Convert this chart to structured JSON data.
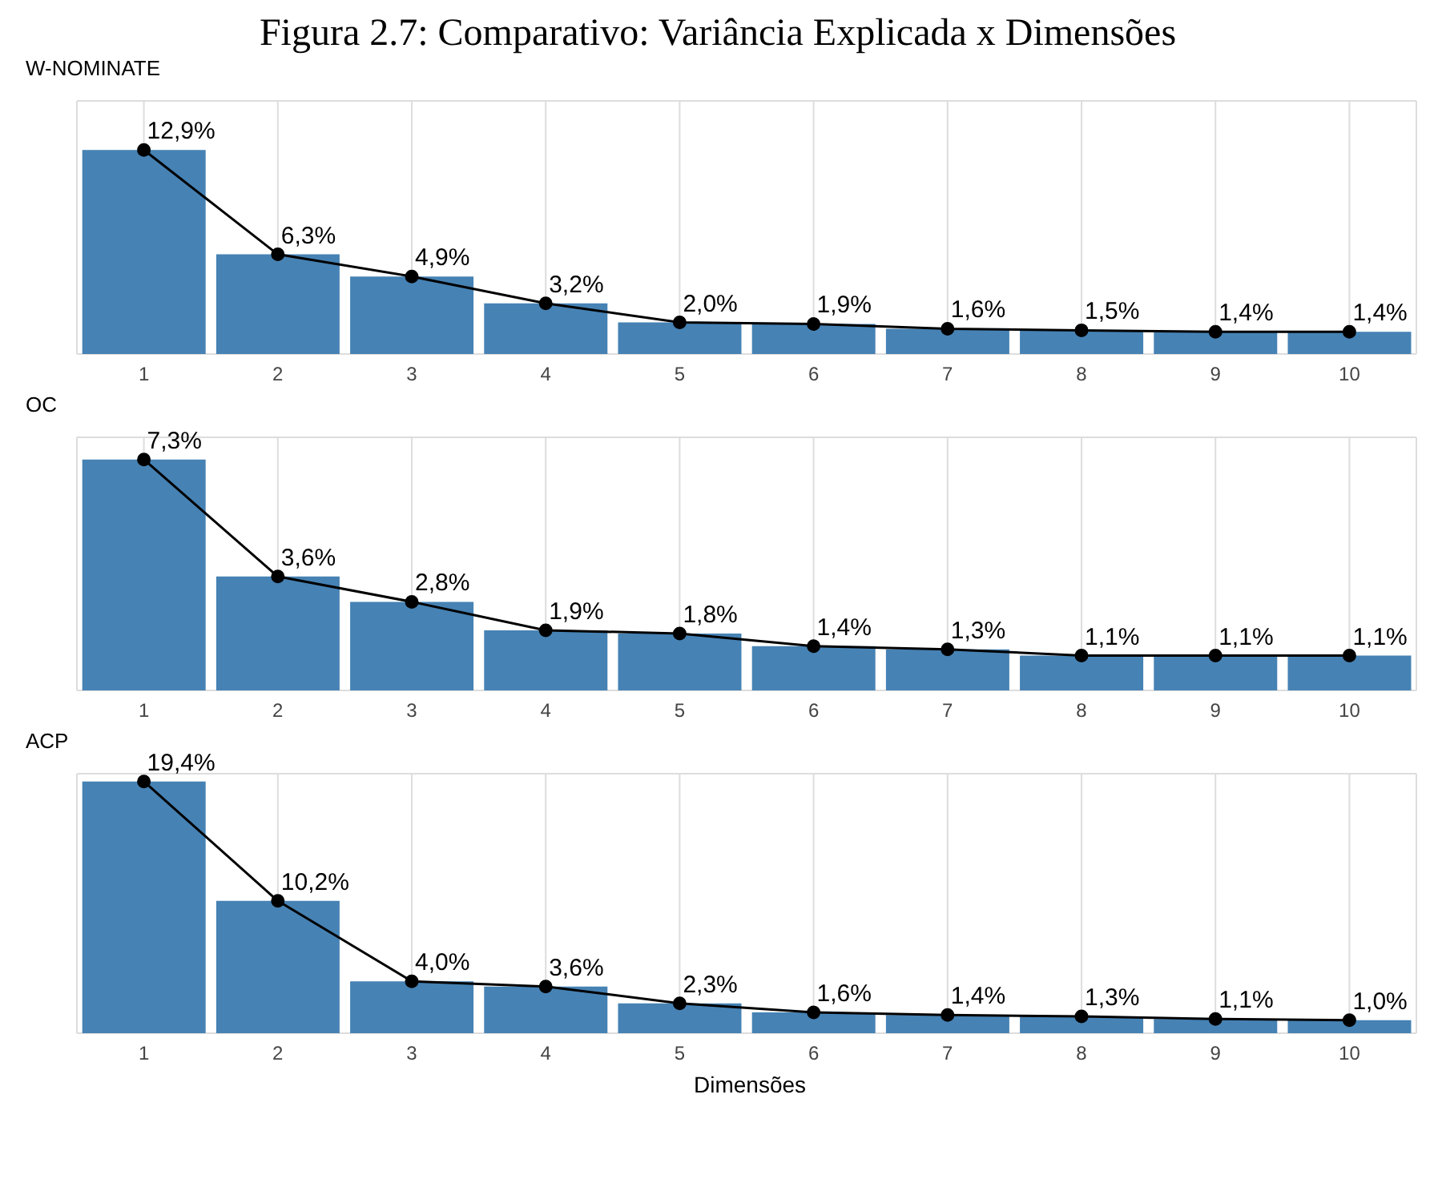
{
  "chart_data": [
    {
      "type": "bar",
      "title": "Figura 2.7: Comparativo: Variância Explicada x Dimensões",
      "subtitle": "W-NOMINATE",
      "categories": [
        "1",
        "2",
        "3",
        "4",
        "5",
        "6",
        "7",
        "8",
        "9",
        "10"
      ],
      "series": [
        {
          "color": "#4682b4",
          "values": [
            12.9,
            6.3,
            4.9,
            3.2,
            2.0,
            1.9,
            1.6,
            1.5,
            1.4,
            1.4
          ]
        },
        {
          "type": "line",
          "color": "#000000",
          "values": [
            12.9,
            6.3,
            4.9,
            3.2,
            2.0,
            1.9,
            1.6,
            1.5,
            1.4,
            1.4
          ],
          "value_labels": [
            "12,9%",
            "6,3%",
            "4,9%",
            "3,2%",
            "2,0%",
            "1,9%",
            "1,6%",
            "1,5%",
            "1,4%",
            "1,4%"
          ]
        }
      ],
      "grid": true,
      "tick_labels": "x",
      "marker": "circle"
    },
    {
      "type": "bar",
      "subtitle": "OC",
      "categories": [
        "1",
        "2",
        "3",
        "4",
        "5",
        "6",
        "7",
        "8",
        "9",
        "10"
      ],
      "series": [
        {
          "color": "#4682b4",
          "values": [
            7.3,
            3.6,
            2.8,
            1.9,
            1.8,
            1.4,
            1.3,
            1.1,
            1.1,
            1.1
          ]
        },
        {
          "type": "line",
          "color": "#000000",
          "values": [
            7.3,
            3.6,
            2.8,
            1.9,
            1.8,
            1.4,
            1.3,
            1.1,
            1.1,
            1.1
          ],
          "value_labels": [
            "7,3%",
            "3,6%",
            "2,8%",
            "1,9%",
            "1,8%",
            "1,4%",
            "1,3%",
            "1,1%",
            "1,1%",
            "1,1%"
          ]
        }
      ],
      "grid": true,
      "tick_labels": "x",
      "marker": "circle"
    },
    {
      "type": "bar",
      "subtitle": "ACP",
      "xlabel": "Dimensões",
      "categories": [
        "1",
        "2",
        "3",
        "4",
        "5",
        "6",
        "7",
        "8",
        "9",
        "10"
      ],
      "series": [
        {
          "color": "#4682b4",
          "values": [
            19.4,
            10.2,
            4.0,
            3.6,
            2.3,
            1.6,
            1.4,
            1.3,
            1.1,
            1.0
          ]
        },
        {
          "type": "line",
          "color": "#000000",
          "values": [
            19.4,
            10.2,
            4.0,
            3.6,
            2.3,
            1.6,
            1.4,
            1.3,
            1.1,
            1.0
          ],
          "value_labels": [
            "19,4%",
            "10,2%",
            "4,0%",
            "3,6%",
            "2,3%",
            "1,6%",
            "1,4%",
            "1,3%",
            "1,1%",
            "1,0%"
          ]
        }
      ],
      "grid": true,
      "tick_labels": "x",
      "marker": "circle"
    }
  ]
}
